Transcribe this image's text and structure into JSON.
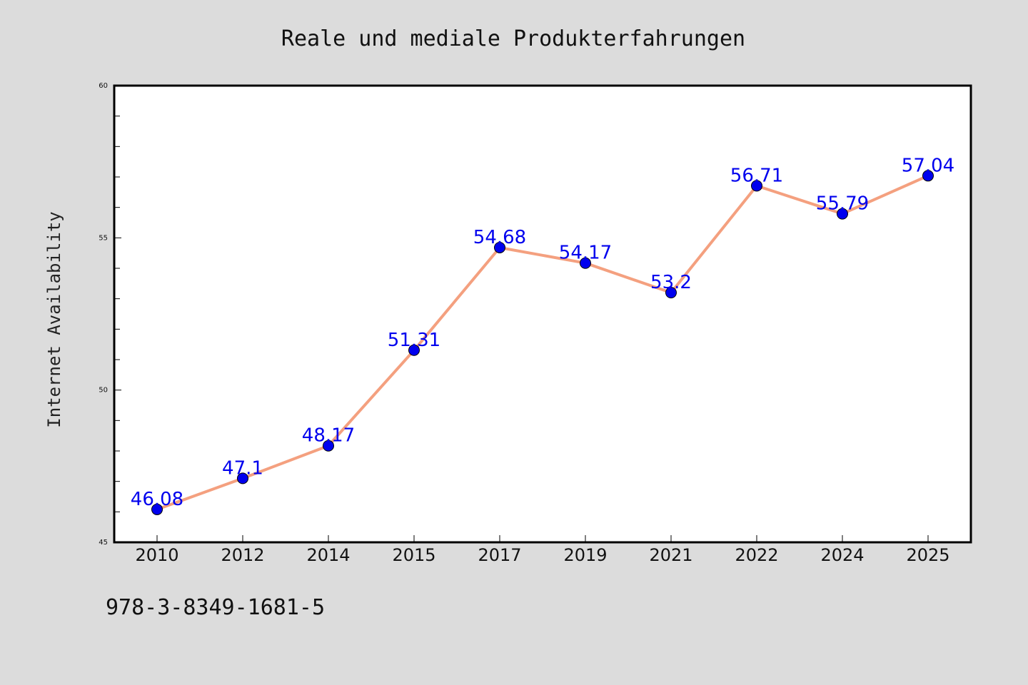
{
  "chart_data": {
    "type": "line",
    "title": "Reale und mediale Produkterfahrungen",
    "xlabel": "",
    "ylabel": "Internet Availability",
    "categories": [
      "2010",
      "2012",
      "2014",
      "2015",
      "2017",
      "2019",
      "2021",
      "2022",
      "2024",
      "2025"
    ],
    "series": [
      {
        "values": [
          46.08,
          47.1,
          48.17,
          51.31,
          54.68,
          54.17,
          53.2,
          56.71,
          55.79,
          57.04
        ],
        "labels": [
          "46.08",
          "47.1",
          "48.17",
          "51.31",
          "54.68",
          "54.17",
          "53.2",
          "56.71",
          "55.79",
          "57.04"
        ]
      }
    ],
    "ylim": [
      45,
      60
    ],
    "yticks": [
      "45",
      "50",
      "55",
      "60"
    ],
    "grid": false,
    "legend": "none"
  },
  "footnote": "978-3-8349-1681-5",
  "colors": {
    "background": "#dcdcdc",
    "plot_background": "#ffffff",
    "line": "#f4a07f",
    "marker": "#0000ee",
    "data_label": "#0000ee",
    "frame": "#000000"
  }
}
